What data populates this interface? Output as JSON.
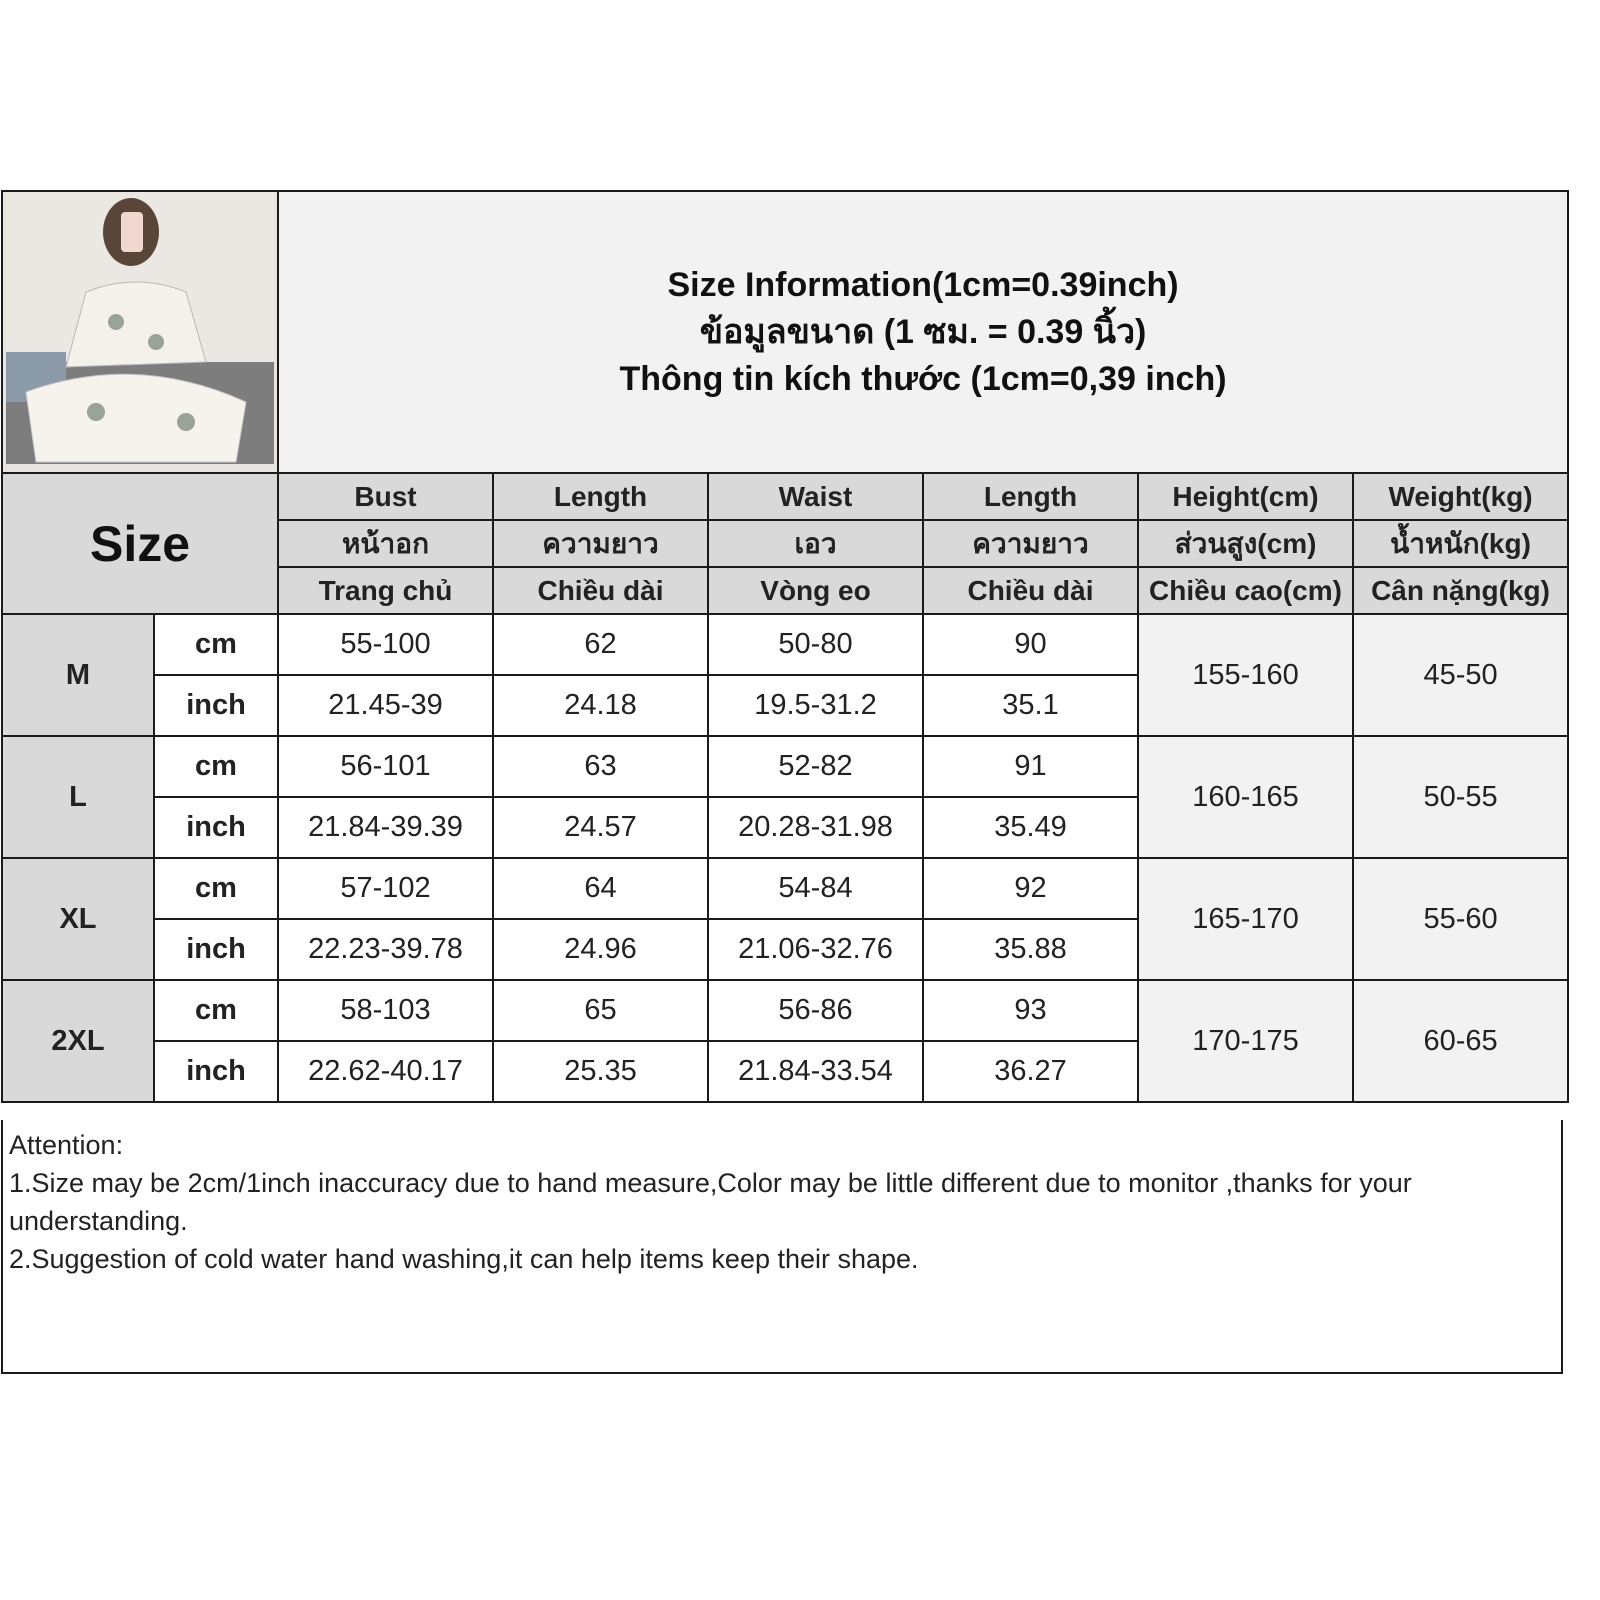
{
  "title_lines": [
    "Size Information(1cm=0.39inch)",
    "ข้อมูลขนาด (1 ซม. = 0.39 นิ้ว)",
    "Thông tin kích thước (1cm=0,39 inch)"
  ],
  "size_header": "Size",
  "columns": [
    {
      "en": "Bust",
      "th": "หน้าอก",
      "vi": "Trang chủ"
    },
    {
      "en": "Length",
      "th": "ความยาว",
      "vi": "Chiều dài"
    },
    {
      "en": "Waist",
      "th": "เอว",
      "vi": "Vòng eo"
    },
    {
      "en": "Length",
      "th": "ความยาว",
      "vi": "Chiều dài"
    },
    {
      "en": "Height(cm)",
      "th": "ส่วนสูง(cm)",
      "vi": "Chiều cao(cm)"
    },
    {
      "en": "Weight(kg)",
      "th": "น้ำหนัก(kg)",
      "vi": "Cân nặng(kg)"
    }
  ],
  "units": {
    "cm": "cm",
    "inch": "inch"
  },
  "sizes": [
    {
      "size": "M",
      "cm": [
        "55-100",
        "62",
        "50-80",
        "90"
      ],
      "inch": [
        "21.45-39",
        "24.18",
        "19.5-31.2",
        "35.1"
      ],
      "height": "155-160",
      "weight": "45-50"
    },
    {
      "size": "L",
      "cm": [
        "56-101",
        "63",
        "52-82",
        "91"
      ],
      "inch": [
        "21.84-39.39",
        "24.57",
        "20.28-31.98",
        "35.49"
      ],
      "height": "160-165",
      "weight": "50-55"
    },
    {
      "size": "XL",
      "cm": [
        "57-102",
        "64",
        "54-84",
        "92"
      ],
      "inch": [
        "22.23-39.78",
        "24.96",
        "21.06-32.76",
        "35.88"
      ],
      "height": "165-170",
      "weight": "55-60"
    },
    {
      "size": "2XL",
      "cm": [
        "58-103",
        "65",
        "56-86",
        "93"
      ],
      "inch": [
        "22.62-40.17",
        "25.35",
        "21.84-33.54",
        "36.27"
      ],
      "height": "170-175",
      "weight": "60-65"
    }
  ],
  "attention": {
    "heading": "Attention:",
    "notes": [
      "1.Size may be 2cm/1inch inaccuracy due to hand measure,Color may be little different due to monitor ,thanks for your understanding.",
      "2.Suggestion of cold water hand washing,it can help items keep their shape."
    ]
  }
}
